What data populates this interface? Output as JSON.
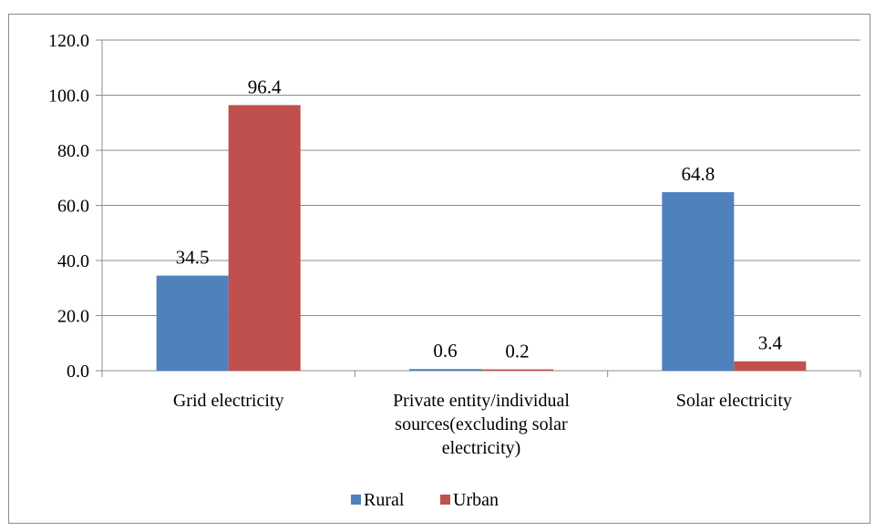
{
  "chart_data": {
    "type": "bar",
    "categories": [
      [
        "Grid electricity"
      ],
      [
        "Private entity/individual",
        "sources(excluding solar",
        "electricity)"
      ],
      [
        "Solar electricity"
      ]
    ],
    "series": [
      {
        "name": "Rural",
        "values": [
          34.5,
          0.6,
          64.8
        ],
        "labels": [
          "34.5",
          "0.6",
          "64.8"
        ]
      },
      {
        "name": "Urban",
        "values": [
          96.4,
          0.2,
          3.4
        ],
        "labels": [
          "96.4",
          "0.2",
          "3.4"
        ]
      }
    ],
    "yticks": [
      "0.0",
      "20.0",
      "40.0",
      "60.0",
      "80.0",
      "100.0",
      "120.0"
    ],
    "ylim": [
      0,
      120
    ],
    "grid": true,
    "legend_position": "bottom",
    "colors": {
      "Rural": "#4f81bd",
      "Urban": "#c0504d",
      "grid": "#8c8c8c"
    }
  }
}
